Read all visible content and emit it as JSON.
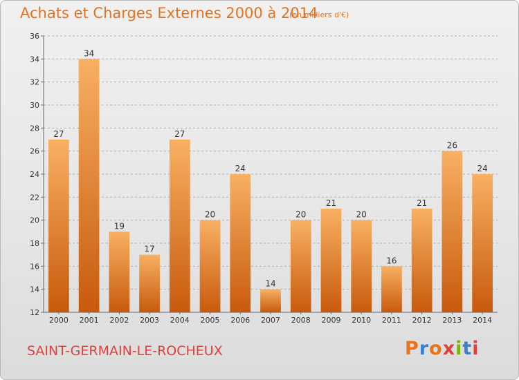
{
  "header": {
    "title": "Achats et Charges Externes 2000 à 2014",
    "unit": "(en milliers d'€)"
  },
  "footer": {
    "commune": "SAINT-GERMAIN-LE-ROCHEUX",
    "logo": "Proxiti",
    "logo_colors": [
      "#e8711c",
      "#3a7fcf",
      "#e8711c",
      "#e0403c",
      "#7ab800",
      "#3a7fcf",
      "#e0403c"
    ]
  },
  "chart_data": {
    "type": "bar",
    "title": "Achats et Charges Externes 2000 à 2014",
    "subtitle": "(en milliers d'€)",
    "xlabel": "",
    "ylabel": "",
    "categories": [
      "2000",
      "2001",
      "2002",
      "2003",
      "2004",
      "2005",
      "2006",
      "2007",
      "2008",
      "2009",
      "2010",
      "2011",
      "2012",
      "2013",
      "2014"
    ],
    "values": [
      27,
      34,
      19,
      17,
      27,
      20,
      24,
      14,
      20,
      21,
      20,
      16,
      21,
      26,
      24
    ],
    "ylim": [
      12,
      36
    ],
    "yticks": [
      12,
      14,
      16,
      18,
      20,
      22,
      24,
      26,
      28,
      30,
      32,
      34,
      36
    ],
    "grid": true,
    "bar_color": "#f0892c",
    "bar_color_light": "#f8b062",
    "bar_color_dark": "#c85a0c",
    "grid_color": "#b0b0b0"
  }
}
